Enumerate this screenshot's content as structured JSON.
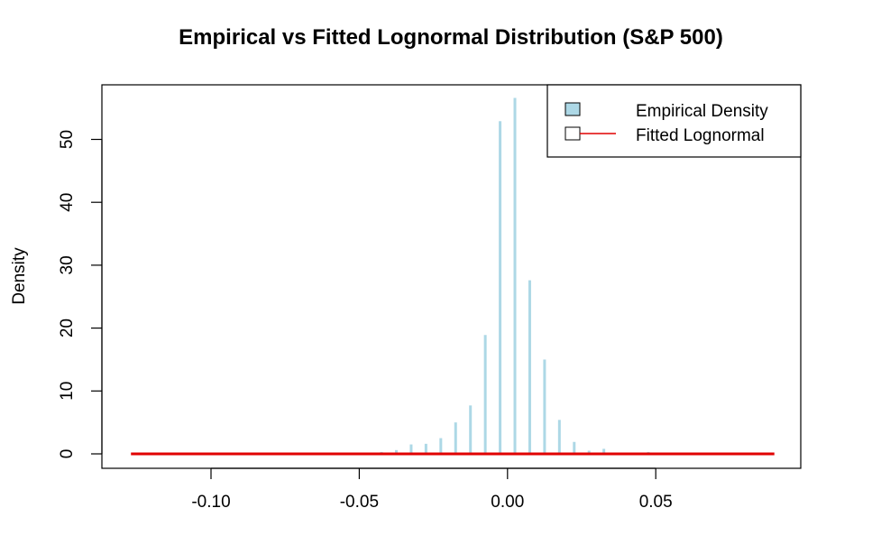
{
  "chart_data": {
    "type": "bar",
    "title": "Empirical vs Fitted Lognormal Distribution (S&P 500)",
    "xlabel": "",
    "ylabel": "Density",
    "xlim": [
      -0.128,
      0.09
    ],
    "ylim": [
      0,
      58
    ],
    "x_ticks": [
      -0.1,
      -0.05,
      0.0,
      0.05
    ],
    "x_tick_labels": [
      "-0.10",
      "-0.05",
      "0.00",
      "0.05"
    ],
    "y_ticks": [
      0,
      10,
      20,
      30,
      40,
      50
    ],
    "y_tick_labels": [
      "0",
      "10",
      "20",
      "30",
      "40",
      "50"
    ],
    "legend_position": "top-right",
    "legend": [
      {
        "label": "Empirical Density",
        "kind": "fill",
        "color": "#add8e6"
      },
      {
        "label": "Fitted Lognormal",
        "kind": "line",
        "color": "#e00000"
      }
    ],
    "series": [
      {
        "name": "Empirical Density",
        "color": "#add8e6",
        "x": [
          -0.1225,
          -0.1175,
          -0.1125,
          -0.1075,
          -0.1025,
          -0.0975,
          -0.0925,
          -0.0875,
          -0.0825,
          -0.0775,
          -0.0725,
          -0.0675,
          -0.0625,
          -0.0575,
          -0.0525,
          -0.0475,
          -0.0425,
          -0.0375,
          -0.0325,
          -0.0275,
          -0.0225,
          -0.0175,
          -0.0125,
          -0.0075,
          -0.0025,
          0.0025,
          0.0075,
          0.0125,
          0.0175,
          0.0225,
          0.0275,
          0.0325,
          0.0375,
          0.0425,
          0.0475,
          0.0525,
          0.0575,
          0.0625,
          0.0675,
          0.0725,
          0.0775,
          0.0825,
          0.0875
        ],
        "values": [
          0.05,
          0,
          0,
          0,
          0,
          0.05,
          0,
          0,
          0,
          0.05,
          0,
          0,
          0.05,
          0,
          0.1,
          0.2,
          0.3,
          0.6,
          1.5,
          1.6,
          2.5,
          5.0,
          7.7,
          18.9,
          52.9,
          56.6,
          27.6,
          15.0,
          5.4,
          1.9,
          0.5,
          0.8,
          0.1,
          0.1,
          0.3,
          0.05,
          0.05,
          0,
          0.05,
          0,
          0,
          0,
          0.05
        ]
      },
      {
        "name": "Fitted Lognormal",
        "color": "#e00000",
        "x_range": [
          -0.127,
          0.09
        ],
        "value": 0
      }
    ]
  }
}
